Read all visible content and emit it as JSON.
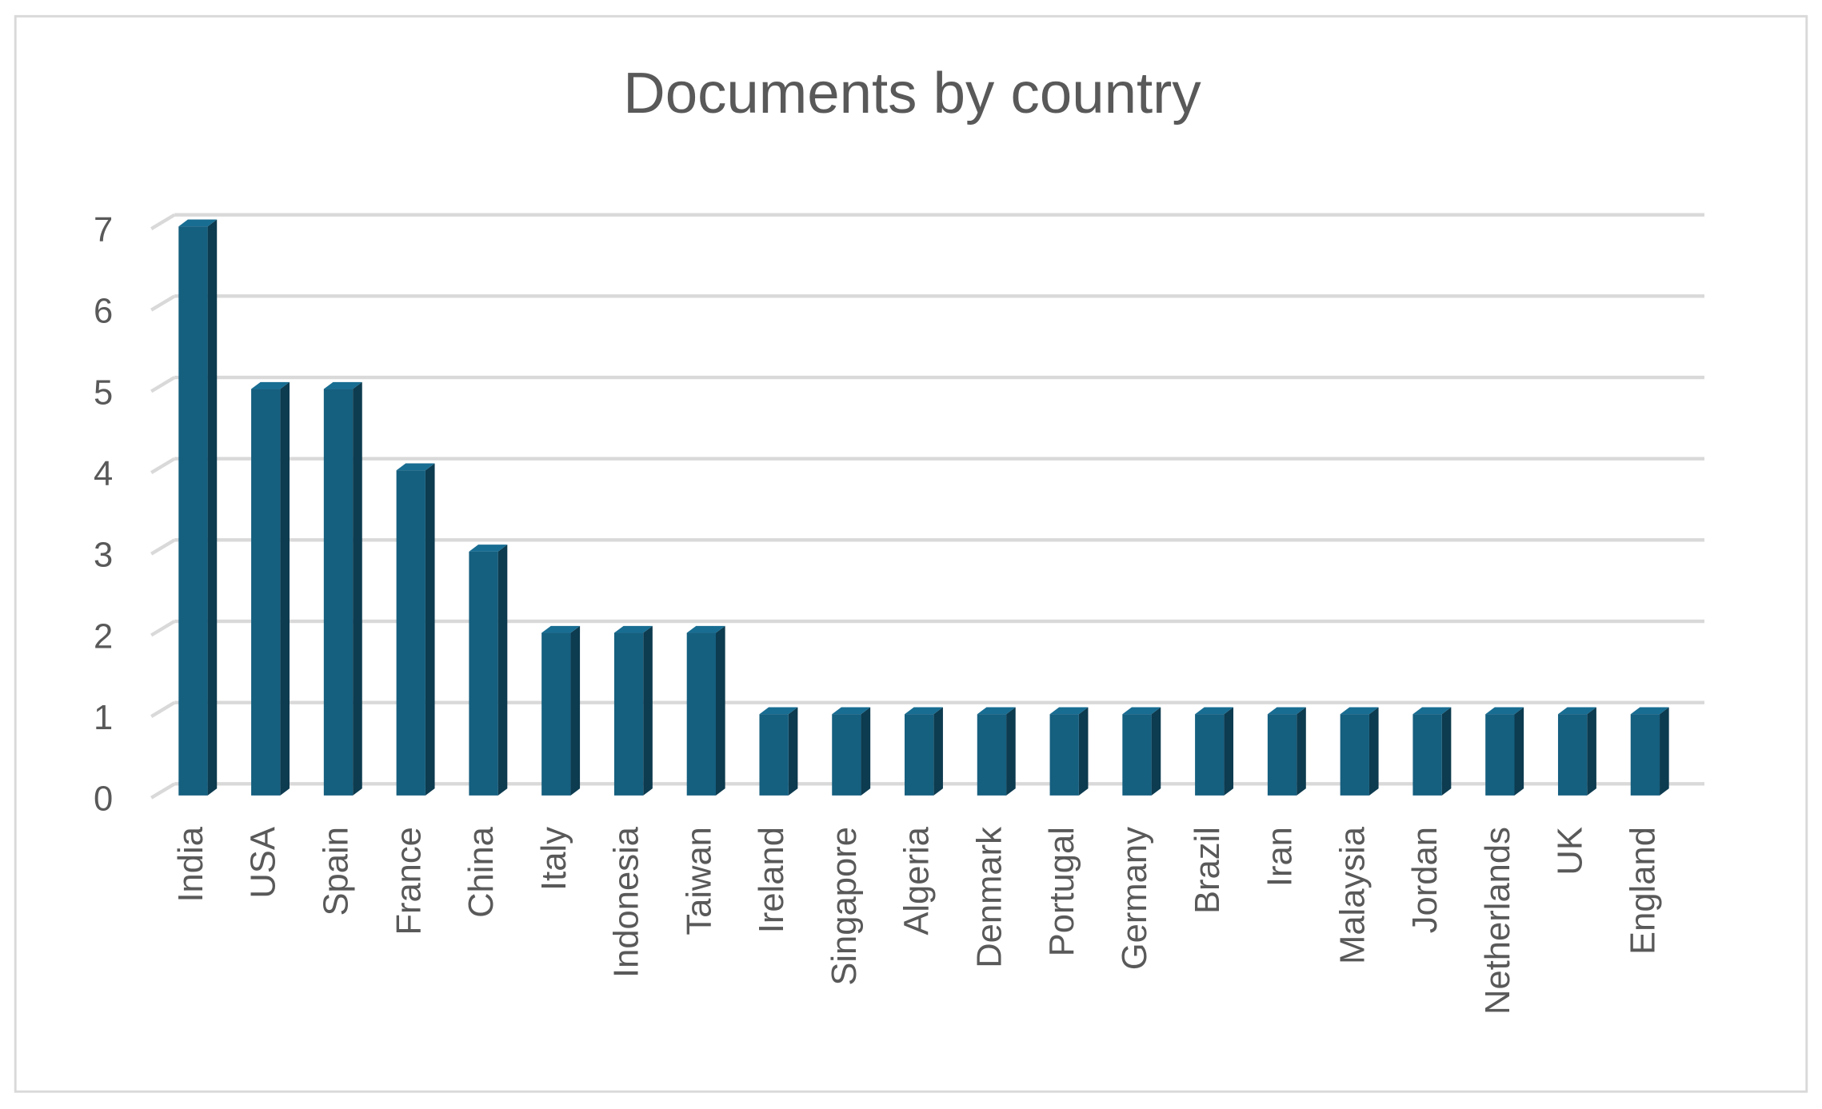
{
  "chart_data": {
    "type": "bar",
    "title": "Documents by country",
    "categories": [
      "India",
      "USA",
      "Spain",
      "France",
      "China",
      "Italy",
      "Indonesia",
      "Taiwan",
      "Ireland",
      "Singapore",
      "Algeria",
      "Denmark",
      "Portugal",
      "Germany",
      "Brazil",
      "Iran",
      "Malaysia",
      "Jordan",
      "Netherlands",
      "UK",
      "England"
    ],
    "values": [
      7,
      5,
      5,
      4,
      3,
      2,
      2,
      2,
      1,
      1,
      1,
      1,
      1,
      1,
      1,
      1,
      1,
      1,
      1,
      1,
      1
    ],
    "color": "#155f7f",
    "ylim": [
      0,
      7
    ],
    "yticks": [
      0,
      1,
      2,
      3,
      4,
      5,
      6,
      7
    ],
    "grid": true
  }
}
